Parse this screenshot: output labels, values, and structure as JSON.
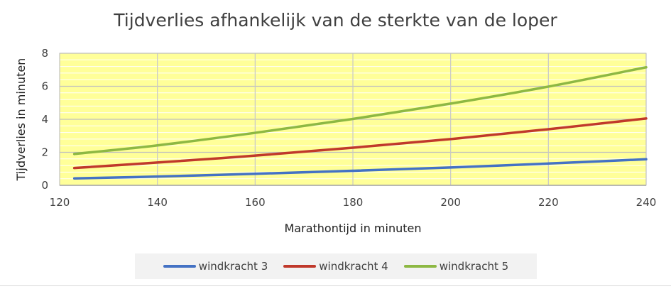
{
  "chart_data": {
    "type": "line",
    "title": "Tijdverlies afhankelijk van de sterkte van de loper",
    "xlabel": "Marathontijd in minuten",
    "ylabel": "Tijdverlies in minuten",
    "xlim": [
      120,
      240
    ],
    "ylim": [
      0,
      8
    ],
    "xticks": [
      120,
      140,
      160,
      180,
      200,
      220,
      240
    ],
    "yticks": [
      0,
      2,
      4,
      6,
      8
    ],
    "grid": true,
    "legend_position": "bottom",
    "plot_background": "#ffff99",
    "series": [
      {
        "name": "windkracht 3",
        "color": "#4472c4",
        "x": [
          123,
          140,
          160,
          180,
          200,
          220,
          240
        ],
        "y": [
          0.42,
          0.53,
          0.7,
          0.88,
          1.08,
          1.32,
          1.58
        ]
      },
      {
        "name": "windkracht 4",
        "color": "#c0392b",
        "x": [
          123,
          140,
          160,
          180,
          200,
          220,
          240
        ],
        "y": [
          1.05,
          1.38,
          1.8,
          2.28,
          2.8,
          3.4,
          4.05
        ]
      },
      {
        "name": "windkracht 5",
        "color": "#8db843",
        "x": [
          123,
          140,
          160,
          180,
          200,
          220,
          240
        ],
        "y": [
          1.9,
          2.42,
          3.18,
          4.02,
          4.95,
          5.98,
          7.15
        ]
      }
    ]
  }
}
